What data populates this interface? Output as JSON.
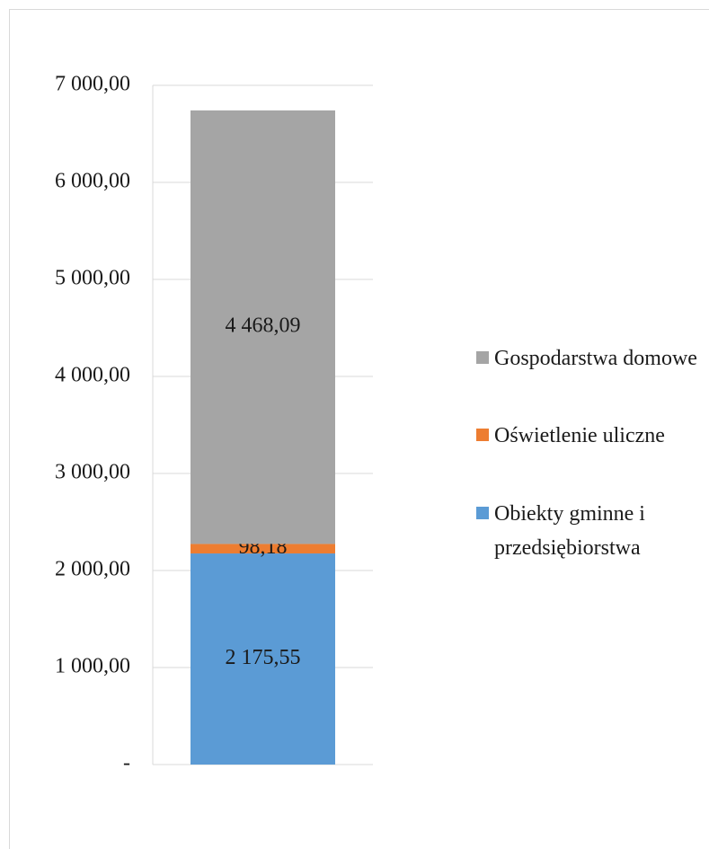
{
  "chart_data": {
    "type": "bar",
    "stacked": true,
    "categories": [
      null
    ],
    "series": [
      {
        "name": "Obiekty gminne i przedsiębiorstwa",
        "color": "#5b9bd5",
        "values": [
          2175.55
        ],
        "value_labels": [
          "2 175,55"
        ]
      },
      {
        "name": "Oświetlenie uliczne",
        "color": "#ed7d31",
        "values": [
          98.18
        ],
        "value_labels": [
          "98,18"
        ]
      },
      {
        "name": "Gospodarstwa domowe",
        "color": "#a5a5a5",
        "values": [
          4468.09
        ],
        "value_labels": [
          "4 468,09"
        ]
      }
    ],
    "ylim": [
      0,
      7000
    ],
    "yticks": [
      {
        "value": 0,
        "label": "-"
      },
      {
        "value": 1000,
        "label": "1 000,00"
      },
      {
        "value": 2000,
        "label": "2 000,00"
      },
      {
        "value": 3000,
        "label": "3 000,00"
      },
      {
        "value": 4000,
        "label": "4 000,00"
      },
      {
        "value": 5000,
        "label": "5 000,00"
      },
      {
        "value": 6000,
        "label": "6 000,00"
      },
      {
        "value": 7000,
        "label": "7 000,00"
      }
    ],
    "grid": true,
    "legend": "right"
  }
}
